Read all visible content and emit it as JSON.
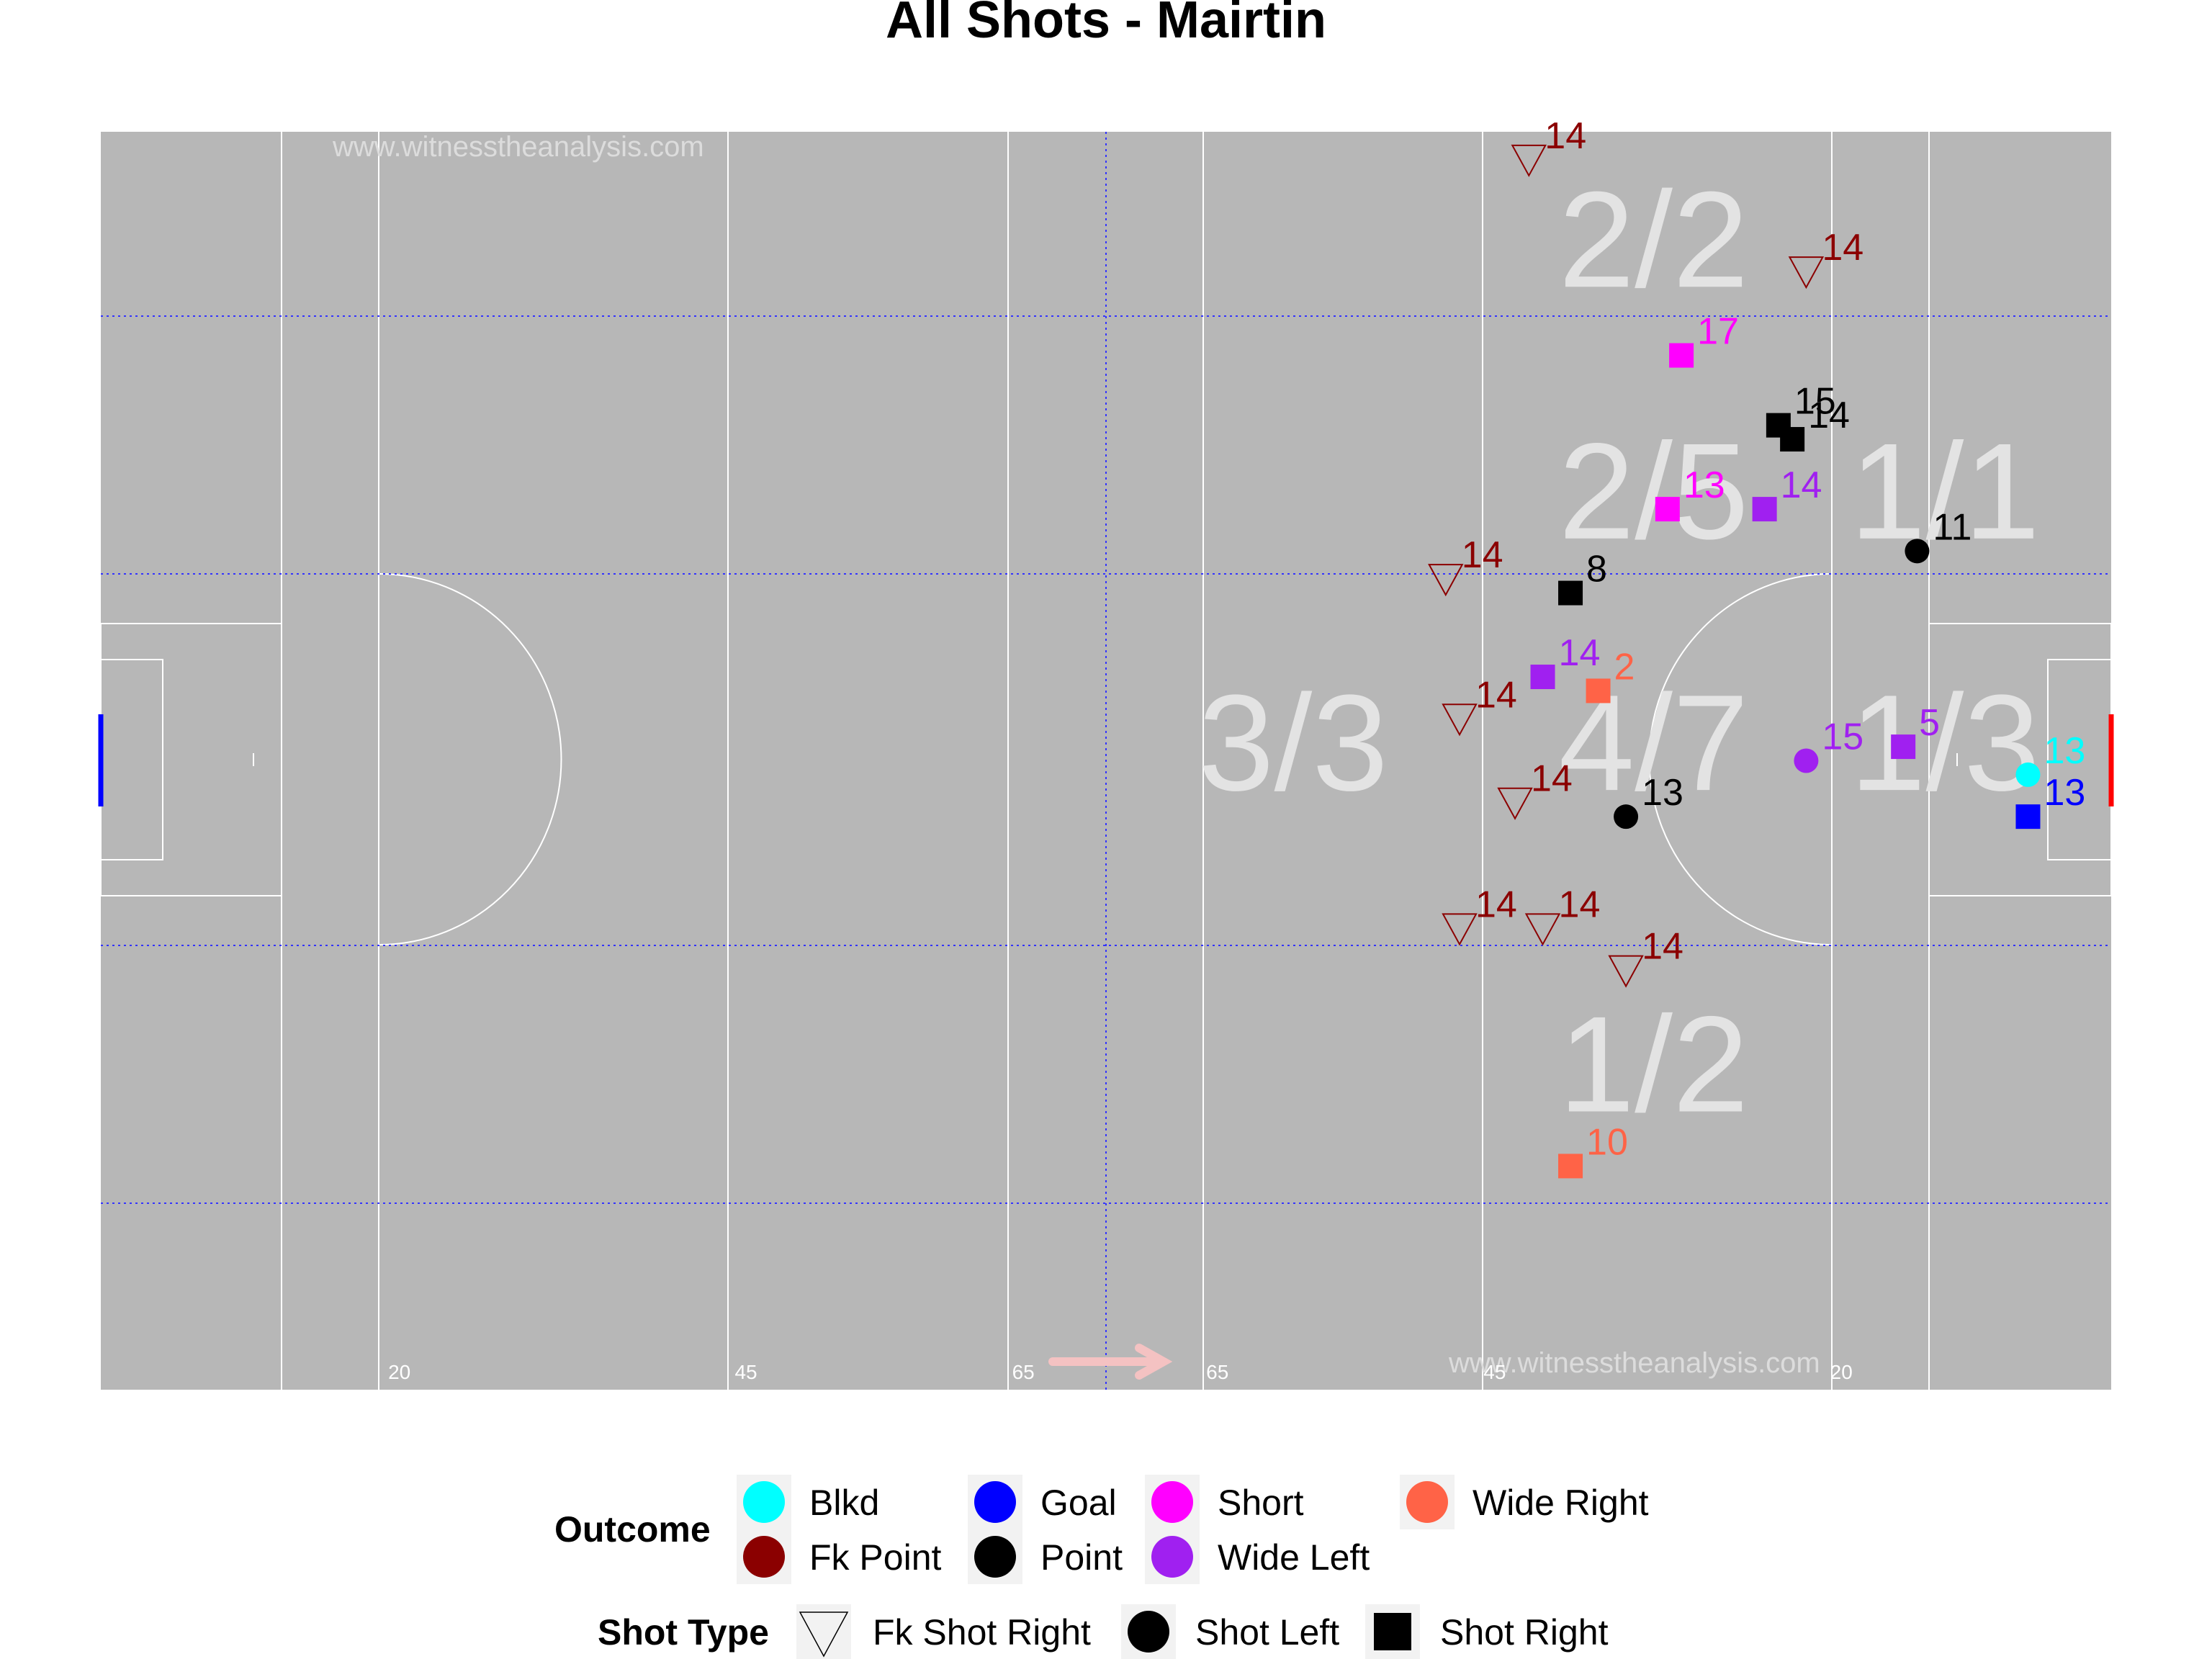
{
  "title": "All Shots - Mairtin",
  "watermark": "www.witnesstheanalysis.com",
  "colors": {
    "Blkd": "#00ffff",
    "Goal": "#0000ff",
    "Short": "#ff00ff",
    "Wide Right": "#ff6347",
    "Fk Point": "#8b0000",
    "Point": "#000000",
    "Wide Left": "#a020f0",
    "pitch": "#b7b7b7",
    "zone_text": "#e3e3e3",
    "arrow": "#f4c2c2"
  },
  "chart_data": {
    "type": "scatter",
    "title": "All Shots - Mairtin",
    "xlim": [
      0,
      145
    ],
    "ylim": [
      0,
      90
    ],
    "grid": "none",
    "legend_position": "bottom",
    "pitch_marks": [
      {
        "text": "20",
        "x": 20
      },
      {
        "text": "45",
        "x": 45
      },
      {
        "text": "65",
        "x": 65
      },
      {
        "text": "65",
        "x": 79
      },
      {
        "text": "45",
        "x": 99
      },
      {
        "text": "20",
        "x": 124
      }
    ],
    "zone_labels": [
      {
        "text": "2/2",
        "x": 112,
        "y": 82
      },
      {
        "text": "2/5",
        "x": 112,
        "y": 64
      },
      {
        "text": "1/1",
        "x": 133,
        "y": 64
      },
      {
        "text": "3/3",
        "x": 86,
        "y": 46
      },
      {
        "text": "4/7",
        "x": 112,
        "y": 46
      },
      {
        "text": "1/3",
        "x": 133,
        "y": 46
      },
      {
        "text": "1/2",
        "x": 112,
        "y": 23
      }
    ],
    "points": [
      {
        "x": 103,
        "y": 88,
        "label": "14",
        "outcome": "Fk Point",
        "type": "Fk Shot Right"
      },
      {
        "x": 123,
        "y": 80,
        "label": "14",
        "outcome": "Fk Point",
        "type": "Fk Shot Right"
      },
      {
        "x": 114,
        "y": 74,
        "label": "17",
        "outcome": "Short",
        "type": "Shot Right"
      },
      {
        "x": 121,
        "y": 69,
        "label": "15",
        "outcome": "Point",
        "type": "Shot Right"
      },
      {
        "x": 122,
        "y": 68,
        "label": "14",
        "outcome": "Point",
        "type": "Shot Right"
      },
      {
        "x": 113,
        "y": 63,
        "label": "13",
        "outcome": "Short",
        "type": "Shot Right"
      },
      {
        "x": 120,
        "y": 63,
        "label": "14",
        "outcome": "Wide Left",
        "type": "Shot Right"
      },
      {
        "x": 131,
        "y": 60,
        "label": "11",
        "outcome": "Point",
        "type": "Shot Left"
      },
      {
        "x": 97,
        "y": 58,
        "label": "14",
        "outcome": "Fk Point",
        "type": "Fk Shot Right"
      },
      {
        "x": 106,
        "y": 57,
        "label": "8",
        "outcome": "Point",
        "type": "Shot Right"
      },
      {
        "x": 104,
        "y": 51,
        "label": "14",
        "outcome": "Wide Left",
        "type": "Shot Right"
      },
      {
        "x": 108,
        "y": 50,
        "label": "2",
        "outcome": "Wide Right",
        "type": "Shot Right"
      },
      {
        "x": 98,
        "y": 48,
        "label": "14",
        "outcome": "Fk Point",
        "type": "Fk Shot Right"
      },
      {
        "x": 130,
        "y": 46,
        "label": "5",
        "outcome": "Wide Left",
        "type": "Shot Right"
      },
      {
        "x": 123,
        "y": 45,
        "label": "15",
        "outcome": "Wide Left",
        "type": "Shot Left"
      },
      {
        "x": 139,
        "y": 44,
        "label": "13",
        "outcome": "Blkd",
        "type": "Shot Left"
      },
      {
        "x": 139,
        "y": 41,
        "label": "13",
        "outcome": "Goal",
        "type": "Shot Right"
      },
      {
        "x": 102,
        "y": 42,
        "label": "14",
        "outcome": "Fk Point",
        "type": "Fk Shot Right"
      },
      {
        "x": 110,
        "y": 41,
        "label": "13",
        "outcome": "Point",
        "type": "Shot Left"
      },
      {
        "x": 98,
        "y": 33,
        "label": "14",
        "outcome": "Fk Point",
        "type": "Fk Shot Right"
      },
      {
        "x": 104,
        "y": 33,
        "label": "14",
        "outcome": "Fk Point",
        "type": "Fk Shot Right"
      },
      {
        "x": 110,
        "y": 30,
        "label": "14",
        "outcome": "Fk Point",
        "type": "Fk Shot Right"
      },
      {
        "x": 106,
        "y": 16,
        "label": "10",
        "outcome": "Wide Right",
        "type": "Shot Right"
      }
    ]
  },
  "legend": {
    "outcome_title": "Outcome",
    "outcomes": [
      "Blkd",
      "Fk Point",
      "Goal",
      "Point",
      "Short",
      "Wide Left",
      "Wide Right"
    ],
    "shot_type_title": "Shot Type",
    "shot_types": [
      "Fk Shot Right",
      "Shot Left",
      "Shot Right"
    ]
  }
}
